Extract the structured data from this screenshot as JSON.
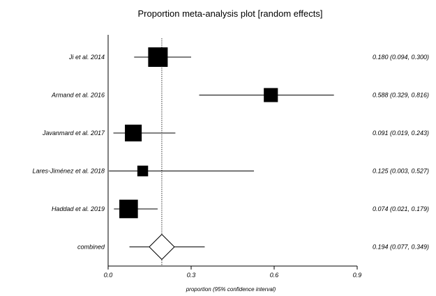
{
  "chart_data": {
    "type": "forest",
    "title": "Proportion meta-analysis plot [random effects]",
    "xlabel": "proportion (95% confidence interval)",
    "xlim": [
      0.0,
      0.9
    ],
    "xticks": [
      {
        "value": 0.0,
        "label": "0.0"
      },
      {
        "value": 0.3,
        "label": "0.3"
      },
      {
        "value": 0.6,
        "label": "0.6"
      },
      {
        "value": 0.9,
        "label": "0.9"
      }
    ],
    "studies": [
      {
        "name": "Ji et al. 2014",
        "estimate": 0.18,
        "lower": 0.094,
        "upper": 0.3,
        "ci_text": "0.180 (0.094, 0.300)",
        "weight": 1.0
      },
      {
        "name": "Armand et al. 2016",
        "estimate": 0.588,
        "lower": 0.329,
        "upper": 0.816,
        "ci_text": "0.588 (0.329, 0.816)",
        "weight": 0.72
      },
      {
        "name": "Javanmard et al. 2017",
        "estimate": 0.091,
        "lower": 0.019,
        "upper": 0.243,
        "ci_text": "0.091 (0.019, 0.243)",
        "weight": 0.86
      },
      {
        "name": "Lares-Jiménez et al. 2018",
        "estimate": 0.125,
        "lower": 0.003,
        "upper": 0.527,
        "ci_text": "0.125 (0.003, 0.527)",
        "weight": 0.55
      },
      {
        "name": "Haddad et al. 2019",
        "estimate": 0.074,
        "lower": 0.021,
        "upper": 0.179,
        "ci_text": "0.074 (0.021, 0.179)",
        "weight": 0.95
      }
    ],
    "combined": {
      "name": "combined",
      "estimate": 0.194,
      "lower": 0.077,
      "upper": 0.349,
      "ci_text": "0.194 (0.077, 0.349)"
    },
    "reference_line": "combined estimate (dotted)"
  }
}
